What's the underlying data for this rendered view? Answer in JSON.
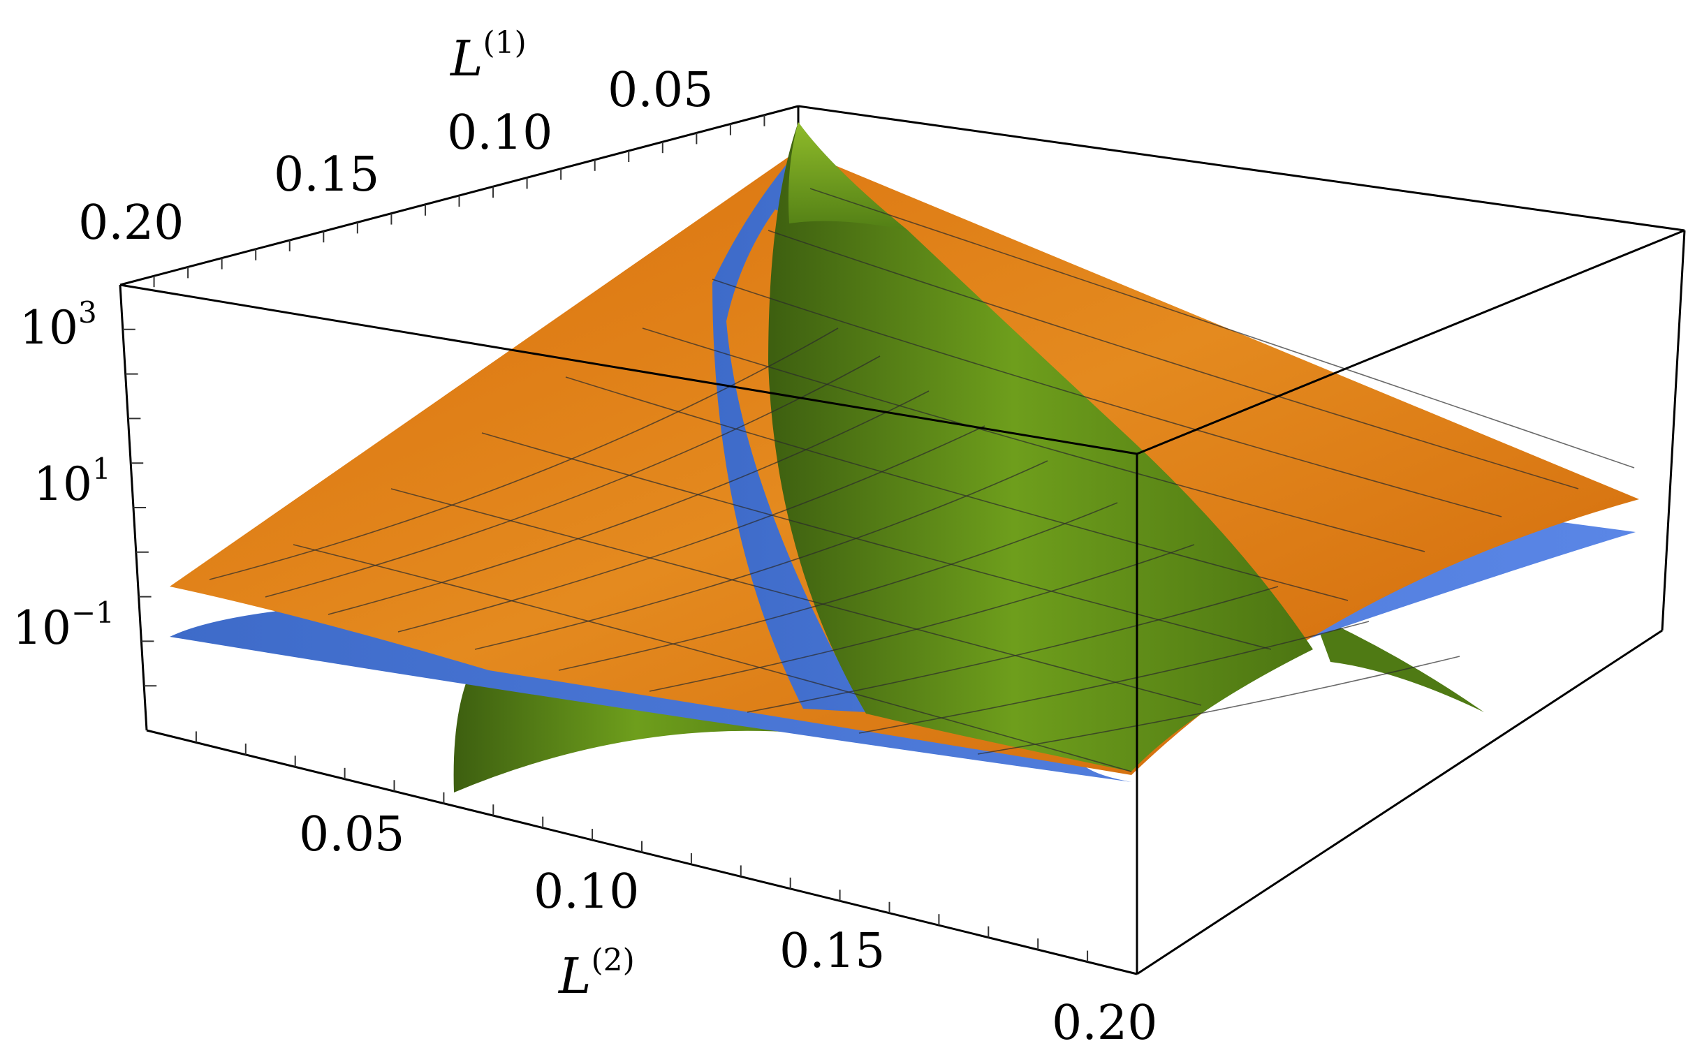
{
  "chart_data": {
    "type": "surface3d",
    "title": "",
    "xlabel": "L",
    "xlabel_superscript": "(2)",
    "ylabel": "L",
    "ylabel_superscript": "(1)",
    "zlabel": "",
    "xlim": [
      0,
      0.2
    ],
    "ylim": [
      0,
      0.2
    ],
    "zscale": "log",
    "z_ticks": [
      {
        "base": "10",
        "exp": "3",
        "value": 1000
      },
      {
        "base": "10",
        "exp": "1",
        "value": 10
      },
      {
        "base": "10",
        "exp": "−1",
        "value": 0.1
      }
    ],
    "x_ticks": [
      "0.05",
      "0.10",
      "0.15",
      "0.20"
    ],
    "y_ticks": [
      "0.05",
      "0.10",
      "0.15",
      "0.20"
    ],
    "series": [
      {
        "color": "#e07a10",
        "shape": "smooth sheet rising from the near corner toward the back corner"
      },
      {
        "color": "#4a78d8",
        "shape": "sheet just below the orange one, visible as a band along the ridge"
      },
      {
        "color": "#5e8f16",
        "shape": "peaked surface with a sharp cusp at L(1) = L(2) = 0"
      }
    ],
    "grid": false,
    "mesh": true,
    "legend": "none"
  }
}
